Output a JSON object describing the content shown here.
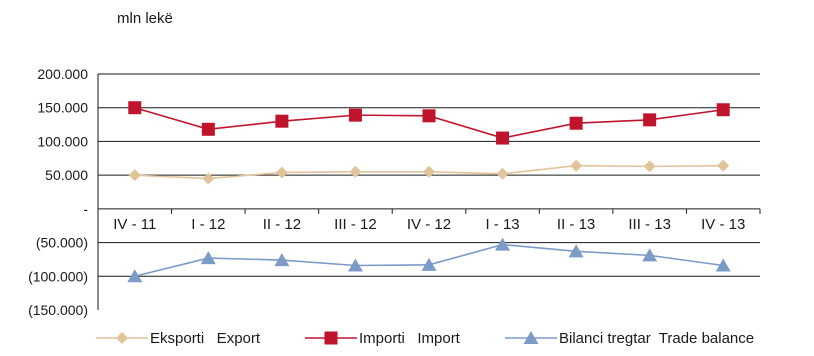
{
  "chart_data": {
    "type": "line",
    "unit_label": "mln lekë",
    "categories": [
      "IV - 11",
      "I - 12",
      "II - 12",
      "III - 12",
      "IV - 12",
      "I - 13",
      "II - 13",
      "III - 13",
      "IV - 13"
    ],
    "ylim": [
      -150000,
      200000
    ],
    "yticks": [
      200000,
      150000,
      100000,
      50000,
      0,
      -50000,
      -100000,
      -150000
    ],
    "ytick_labels": [
      "200.000",
      "150.000",
      "100.000",
      "50.000",
      "-",
      "(50.000)",
      "(100.000)",
      "(150.000)"
    ],
    "grid": true,
    "legend_position": "bottom",
    "series": [
      {
        "name": "Eksporti   Export",
        "values": [
          50000,
          45000,
          54000,
          55000,
          55000,
          52000,
          64000,
          63000,
          64000
        ],
        "color": "#e2c49a",
        "marker": "diamond"
      },
      {
        "name": "Importi   Import",
        "values": [
          150000,
          118000,
          130000,
          139000,
          138000,
          105000,
          127000,
          132000,
          147000
        ],
        "color": "#c0142c",
        "marker": "square"
      },
      {
        "name": "Bilanci tregtar  Trade balance",
        "values": [
          -100000,
          -73000,
          -76000,
          -84000,
          -83000,
          -53000,
          -63000,
          -69000,
          -84000
        ],
        "color": "#7b9bc8",
        "marker": "triangle"
      }
    ]
  }
}
